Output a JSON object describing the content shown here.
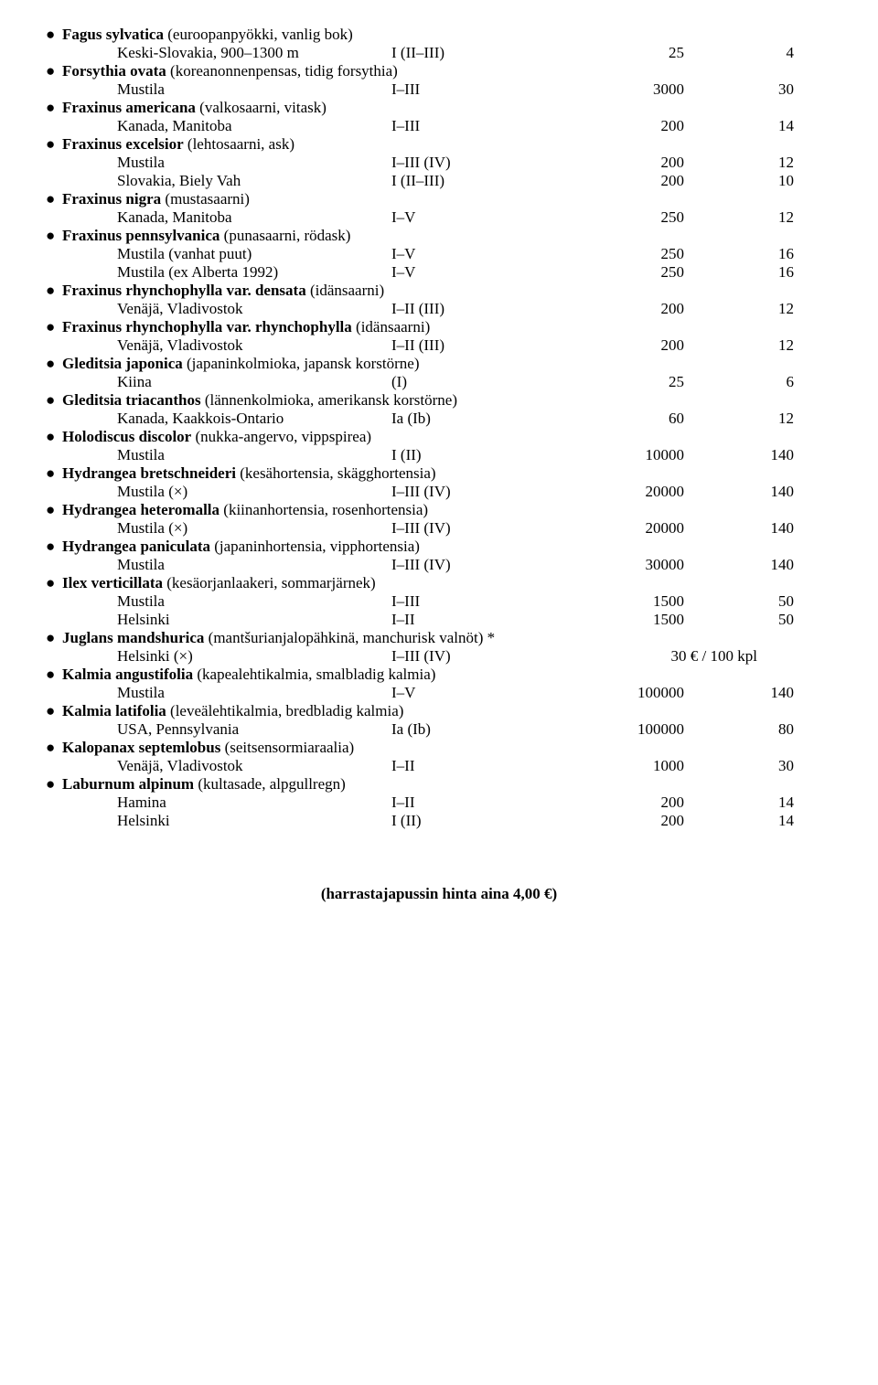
{
  "bullet": "●",
  "entries": [
    {
      "latin": "Fagus sylvatica",
      "common": "(euroopanpyökki, vanlig bok)",
      "rows": [
        {
          "loc": "Keski-Slovakia, 900–1300 m",
          "zone": "I (II–III)",
          "a": "25",
          "b": "4"
        }
      ]
    },
    {
      "latin": "Forsythia ovata",
      "common": "(koreanonnenpensas, tidig forsythia)",
      "rows": [
        {
          "loc": "Mustila",
          "zone": "I–III",
          "a": "3000",
          "b": "30"
        }
      ]
    },
    {
      "latin": "Fraxinus americana",
      "common": "(valkosaarni, vitask)",
      "rows": [
        {
          "loc": "Kanada, Manitoba",
          "zone": "I–III",
          "a": "200",
          "b": "14"
        }
      ]
    },
    {
      "latin": "Fraxinus excelsior",
      "common": "(lehtosaarni, ask)",
      "rows": [
        {
          "loc": "Mustila",
          "zone": "I–III (IV)",
          "a": "200",
          "b": "12"
        },
        {
          "loc": "Slovakia, Biely Vah",
          "zone": "I (II–III)",
          "a": "200",
          "b": "10"
        }
      ]
    },
    {
      "latin": "Fraxinus nigra",
      "common": "(mustasaarni)",
      "rows": [
        {
          "loc": "Kanada, Manitoba",
          "zone": "I–V",
          "a": "250",
          "b": "12"
        }
      ]
    },
    {
      "latin": "Fraxinus pennsylvanica",
      "common": "(punasaarni, rödask)",
      "rows": [
        {
          "loc": "Mustila (vanhat puut)",
          "zone": "I–V",
          "a": "250",
          "b": "16"
        },
        {
          "loc": "Mustila (ex Alberta 1992)",
          "zone": "I–V",
          "a": "250",
          "b": "16"
        }
      ]
    },
    {
      "latin": "Fraxinus rhynchophylla var. densata",
      "common": "(idänsaarni)",
      "rows": [
        {
          "loc": "Venäjä, Vladivostok",
          "zone": "I–II (III)",
          "a": "200",
          "b": "12"
        }
      ]
    },
    {
      "latin": "Fraxinus rhynchophylla var. rhynchophylla",
      "common": "(idänsaarni)",
      "rows": [
        {
          "loc": "Venäjä, Vladivostok",
          "zone": "I–II (III)",
          "a": "200",
          "b": "12"
        }
      ]
    },
    {
      "latin": "Gleditsia japonica",
      "common": "(japaninkolmioka, japansk korstörne)",
      "rows": [
        {
          "loc": "Kiina",
          "zone": "(I)",
          "a": "25",
          "b": "6"
        }
      ]
    },
    {
      "latin": "Gleditsia triacanthos",
      "common": "(lännenkolmioka, amerikansk korstörne)",
      "rows": [
        {
          "loc": "Kanada, Kaakkois-Ontario",
          "zone": "Ia (Ib)",
          "a": "60",
          "b": "12"
        }
      ]
    },
    {
      "latin": "Holodiscus discolor",
      "common": "(nukka-angervo, vippspirea)",
      "rows": [
        {
          "loc": "Mustila",
          "zone": "I (II)",
          "a": "10000",
          "b": "140"
        }
      ]
    },
    {
      "latin": "Hydrangea bretschneideri",
      "common": "(kesähortensia, skägghortensia)",
      "rows": [
        {
          "loc": "Mustila (×)",
          "zone": "I–III (IV)",
          "a": "20000",
          "b": "140"
        }
      ]
    },
    {
      "latin": "Hydrangea heteromalla",
      "common": "(kiinanhortensia, rosenhortensia)",
      "rows": [
        {
          "loc": "Mustila (×)",
          "zone": "I–III (IV)",
          "a": "20000",
          "b": "140"
        }
      ]
    },
    {
      "latin": "Hydrangea paniculata",
      "common": "(japaninhortensia, vipphortensia)",
      "rows": [
        {
          "loc": "Mustila",
          "zone": "I–III (IV)",
          "a": "30000",
          "b": "140"
        }
      ]
    },
    {
      "latin": "Ilex verticillata",
      "common": "(kesäorjanlaakeri, sommarjärnek)",
      "rows": [
        {
          "loc": "Mustila",
          "zone": "I–III",
          "a": "1500",
          "b": "50"
        },
        {
          "loc": "Helsinki",
          "zone": "I–II",
          "a": "1500",
          "b": "50"
        }
      ]
    },
    {
      "latin": "Juglans mandshurica",
      "common": "(mantšurianjalopähkinä, manchurisk valnöt) *",
      "rows": [
        {
          "loc": "Helsinki (×)",
          "zone": "I–III (IV)",
          "wide": "30 € / 100 kpl"
        }
      ]
    },
    {
      "latin": "Kalmia angustifolia",
      "common": "(kapealehtikalmia, smalbladig kalmia)",
      "rows": [
        {
          "loc": "Mustila",
          "zone": "I–V",
          "a": "100000",
          "b": "140"
        }
      ]
    },
    {
      "latin": "Kalmia latifolia",
      "common": "(leveälehtikalmia, bredbladig kalmia)",
      "rows": [
        {
          "loc": "USA, Pennsylvania",
          "zone": "Ia (Ib)",
          "a": "100000",
          "b": "80"
        }
      ]
    },
    {
      "latin": "Kalopanax septemlobus",
      "common": "(seitsensormiaraalia)",
      "rows": [
        {
          "loc": "Venäjä, Vladivostok",
          "zone": "I–II",
          "a": "1000",
          "b": "30"
        }
      ]
    },
    {
      "latin": "Laburnum alpinum",
      "common": "(kultasade, alpgullregn)",
      "rows": [
        {
          "loc": "Hamina",
          "zone": "I–II",
          "a": "200",
          "b": "14"
        },
        {
          "loc": "Helsinki",
          "zone": "I (II)",
          "a": "200",
          "b": "14"
        }
      ]
    }
  ],
  "footer": "(harrastajapussin hinta aina 4,00 €)"
}
